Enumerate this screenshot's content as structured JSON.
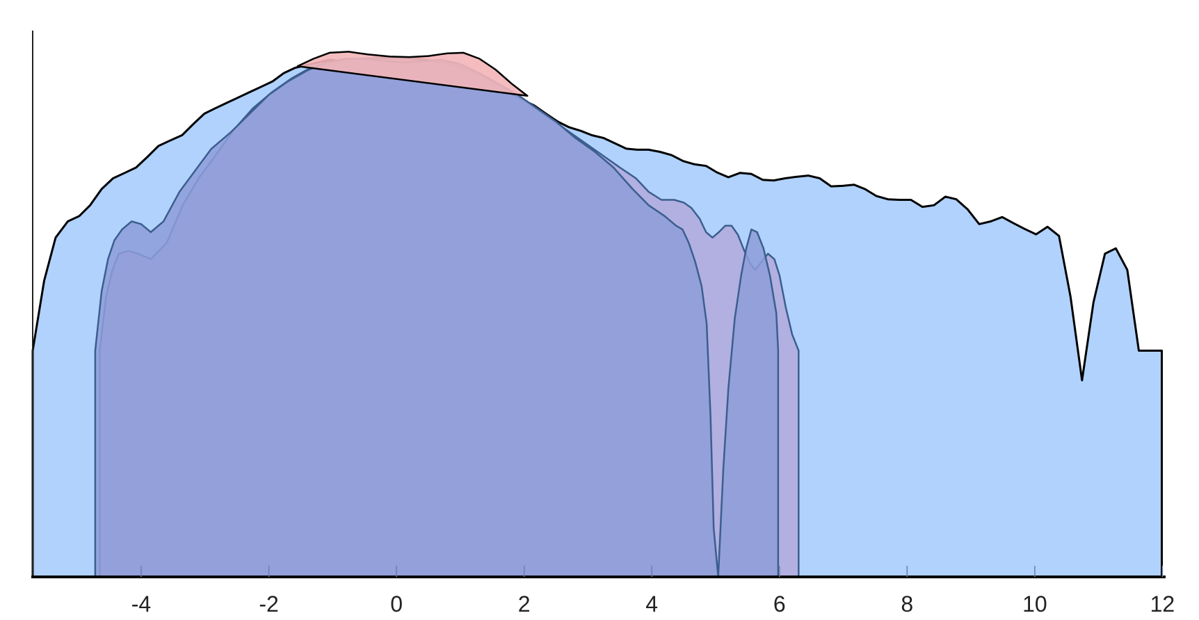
{
  "chart_data": {
    "type": "area",
    "title": "",
    "xlabel": "",
    "ylabel": "",
    "xlim": [
      -5.7,
      12.05
    ],
    "ylim": [
      0,
      1
    ],
    "grid": false,
    "x_ticks": [
      -4,
      -2,
      0,
      2,
      4,
      6,
      8,
      10,
      12
    ],
    "x_tick_labels": [
      "-4",
      "-2",
      "0",
      "2",
      "4",
      "6",
      "8",
      "10",
      "12"
    ],
    "colors": {
      "wide_fill": "#b0d2fc",
      "mid_fill": "#b2aadb",
      "narrow_fill": "#8e9ed8",
      "top_fill": "#f3b5b8",
      "dark_outline": "#000000",
      "blue_outline": "#3b5e8e"
    },
    "series": [
      {
        "fill": "#b0d2fc",
        "stroke": "#000000",
        "x": [
          -5.7,
          -5.52,
          -5.34,
          -5.15,
          -4.97,
          -4.8,
          -4.62,
          -4.44,
          -4.26,
          -4.08,
          -3.9,
          -3.73,
          -3.55,
          -3.36,
          -3.19,
          -3.01,
          -2.84,
          -2.66,
          -2.48,
          -2.3,
          -2.12,
          -1.94,
          -1.77,
          -1.59,
          -1.41,
          -1.23,
          -1.05,
          -0.87,
          -0.7,
          -0.52,
          -0.33,
          -0.15,
          0.02,
          0.2,
          0.38,
          0.56,
          0.74,
          0.92,
          1.1,
          1.27,
          1.45,
          1.63,
          1.81,
          1.99,
          2.16,
          2.34,
          2.53,
          2.7,
          2.89,
          3.06,
          3.24,
          3.42,
          3.6,
          3.77,
          3.95,
          4.13,
          4.31,
          4.49,
          4.67,
          4.85,
          5.02,
          5.2,
          5.38,
          5.56,
          5.74,
          5.91,
          6.09,
          6.28,
          6.45,
          6.63,
          6.81,
          6.99,
          7.17,
          7.34,
          7.52,
          7.7,
          7.88,
          8.06,
          8.24,
          8.42,
          8.6,
          8.77,
          8.95,
          9.13,
          9.31,
          9.49,
          9.66,
          9.84,
          10.02,
          10.2,
          10.38,
          10.56,
          10.74,
          10.92,
          11.1,
          11.27,
          11.45,
          11.63,
          11.81,
          11.99
        ],
        "y": [
          0.42,
          0.55,
          0.63,
          0.66,
          0.67,
          0.69,
          0.72,
          0.74,
          0.75,
          0.76,
          0.78,
          0.8,
          0.81,
          0.82,
          0.84,
          0.86,
          0.87,
          0.88,
          0.89,
          0.9,
          0.91,
          0.92,
          0.935,
          0.945,
          0.95,
          0.955,
          0.96,
          0.958,
          0.959,
          0.962,
          0.963,
          0.964,
          0.964,
          0.964,
          0.961,
          0.958,
          0.955,
          0.95,
          0.942,
          0.935,
          0.925,
          0.91,
          0.895,
          0.885,
          0.875,
          0.86,
          0.845,
          0.835,
          0.828,
          0.82,
          0.815,
          0.805,
          0.795,
          0.793,
          0.793,
          0.789,
          0.783,
          0.772,
          0.766,
          0.763,
          0.751,
          0.742,
          0.75,
          0.748,
          0.737,
          0.736,
          0.74,
          0.743,
          0.745,
          0.74,
          0.725,
          0.726,
          0.728,
          0.72,
          0.707,
          0.701,
          0.7,
          0.7,
          0.687,
          0.69,
          0.706,
          0.701,
          0.682,
          0.655,
          0.66,
          0.668,
          0.657,
          0.646,
          0.636,
          0.65,
          0.633,
          0.52,
          0.365,
          0.51,
          0.6,
          0.61,
          0.57,
          0.42,
          0.42,
          0.42
        ]
      },
      {
        "fill": "#b2aadb",
        "stroke": "#3b5e8e",
        "x": [
          -4.65,
          -4.65,
          -4.55,
          -4.45,
          -4.35,
          -4.2,
          -4.05,
          -3.85,
          -3.6,
          -3.35,
          -3.1,
          -2.85,
          -2.55,
          -2.25,
          -1.95,
          -1.65,
          -1.35,
          -1.05,
          -0.75,
          -0.45,
          -0.1,
          0.2,
          0.5,
          0.8,
          1.1,
          1.4,
          1.7,
          2.0,
          2.3,
          2.6,
          2.9,
          3.2,
          3.5,
          3.75,
          3.95,
          4.15,
          4.35,
          4.5,
          4.62,
          4.75,
          4.85,
          4.95,
          5.05,
          5.15,
          5.25,
          5.35,
          5.45,
          5.55,
          5.62,
          5.72,
          5.82,
          5.92,
          6.0,
          6.1,
          6.2,
          6.3,
          6.3
        ],
        "y": [
          0,
          0.42,
          0.52,
          0.57,
          0.6,
          0.605,
          0.6,
          0.59,
          0.62,
          0.69,
          0.74,
          0.78,
          0.83,
          0.87,
          0.9,
          0.925,
          0.945,
          0.955,
          0.96,
          0.962,
          0.963,
          0.962,
          0.958,
          0.95,
          0.94,
          0.925,
          0.905,
          0.885,
          0.86,
          0.835,
          0.81,
          0.785,
          0.76,
          0.74,
          0.715,
          0.7,
          0.7,
          0.695,
          0.685,
          0.665,
          0.64,
          0.63,
          0.64,
          0.652,
          0.652,
          0.635,
          0.605,
          0.58,
          0.57,
          0.585,
          0.6,
          0.59,
          0.56,
          0.5,
          0.45,
          0.42,
          0
        ]
      },
      {
        "fill": "#8e9ed8",
        "stroke": "#3b5e8e",
        "x": [
          -4.72,
          -4.72,
          -4.62,
          -4.52,
          -4.42,
          -4.3,
          -4.15,
          -4.0,
          -3.85,
          -3.65,
          -3.4,
          -3.15,
          -2.9,
          -2.6,
          -2.3,
          -2.0,
          -1.7,
          -1.4,
          -1.1,
          -0.8,
          -0.5,
          -0.2,
          0.1,
          0.4,
          0.7,
          1.0,
          1.3,
          1.6,
          1.9,
          2.2,
          2.5,
          2.8,
          3.1,
          3.4,
          3.7,
          3.95,
          4.2,
          4.38,
          4.48,
          4.58,
          4.68,
          4.78,
          4.86,
          4.92,
          4.97,
          5.04,
          5.12,
          5.2,
          5.3,
          5.4,
          5.48,
          5.56,
          5.65,
          5.75,
          5.85,
          5.95,
          5.98
        ],
        "y": [
          0,
          0.42,
          0.53,
          0.59,
          0.625,
          0.645,
          0.66,
          0.655,
          0.64,
          0.66,
          0.715,
          0.755,
          0.795,
          0.825,
          0.86,
          0.895,
          0.92,
          0.94,
          0.955,
          0.962,
          0.962,
          0.958,
          0.955,
          0.957,
          0.96,
          0.952,
          0.935,
          0.915,
          0.895,
          0.87,
          0.845,
          0.815,
          0.79,
          0.76,
          0.72,
          0.69,
          0.67,
          0.652,
          0.645,
          0.62,
          0.585,
          0.54,
          0.47,
          0.3,
          0.09,
          0.0,
          0.2,
          0.35,
          0.48,
          0.56,
          0.61,
          0.645,
          0.64,
          0.61,
          0.56,
          0.49,
          0.42
        ]
      },
      {
        "fill": "#f3b5b8",
        "stroke": "#000000",
        "x": [
          -1.55,
          -1.3,
          -1.05,
          -0.75,
          -0.45,
          -0.1,
          0.2,
          0.5,
          0.8,
          1.05,
          1.3,
          1.55,
          1.8,
          2.05
        ],
        "y": [
          0.948,
          0.962,
          0.973,
          0.975,
          0.97,
          0.966,
          0.965,
          0.967,
          0.972,
          0.973,
          0.962,
          0.942,
          0.916,
          0.893
        ]
      }
    ]
  }
}
